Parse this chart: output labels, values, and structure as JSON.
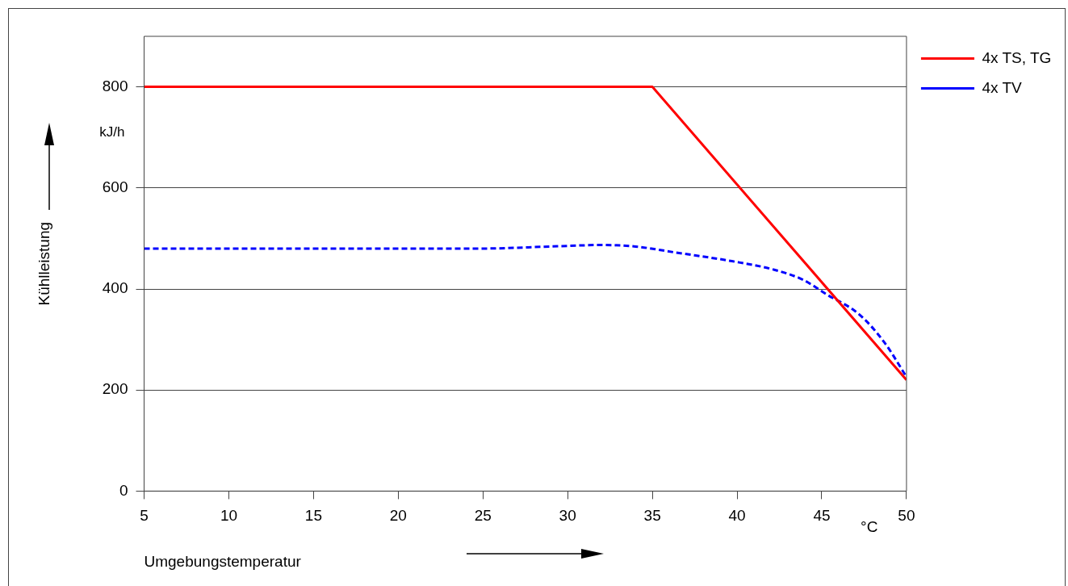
{
  "chart_data": {
    "type": "line",
    "xlabel": "Umgebungstemperatur",
    "ylabel": "Kühlleistung",
    "annotations": [
      "kJ/h",
      "°C"
    ],
    "xlim": [
      5,
      50
    ],
    "xticks": [
      5,
      10,
      15,
      20,
      25,
      30,
      35,
      40,
      45,
      50
    ],
    "ylim": [
      0,
      900
    ],
    "yticks": [
      0,
      200,
      400,
      600,
      800
    ],
    "grid": "y",
    "legend": "right",
    "marker": "none",
    "series": [
      {
        "name": "4x TS, TG",
        "color": "#ff0000",
        "line_style": "solid",
        "x": [
          5,
          35,
          50
        ],
        "values": [
          800,
          800,
          220
        ]
      },
      {
        "name": "4x TV",
        "color": "#0000ff",
        "line_style": "dashed",
        "x": [
          5,
          15,
          25,
          29,
          32,
          34,
          36.4,
          39.7,
          42.2,
          43.9,
          45.3,
          47.2,
          48.7,
          50
        ],
        "values": [
          480,
          480,
          480,
          484,
          487,
          484,
          472,
          455,
          438,
          418,
          389,
          350,
          294,
          226
        ]
      }
    ]
  }
}
